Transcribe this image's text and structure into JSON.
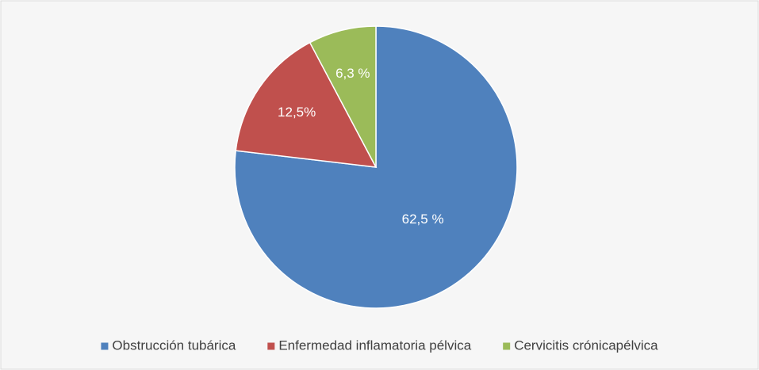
{
  "chart_data": {
    "type": "pie",
    "categories": [
      "Obstrucción tubárica",
      "Enfermedad inflamatoria pélvica",
      "Cervicitis crónicapélvica"
    ],
    "values": [
      62.5,
      12.5,
      6.3
    ],
    "value_labels": [
      "62,5 %",
      "12,5%",
      "6,3 %"
    ],
    "colors": [
      "#4f81bd",
      "#c0504d",
      "#9bbb59"
    ],
    "legend": "bottom"
  }
}
